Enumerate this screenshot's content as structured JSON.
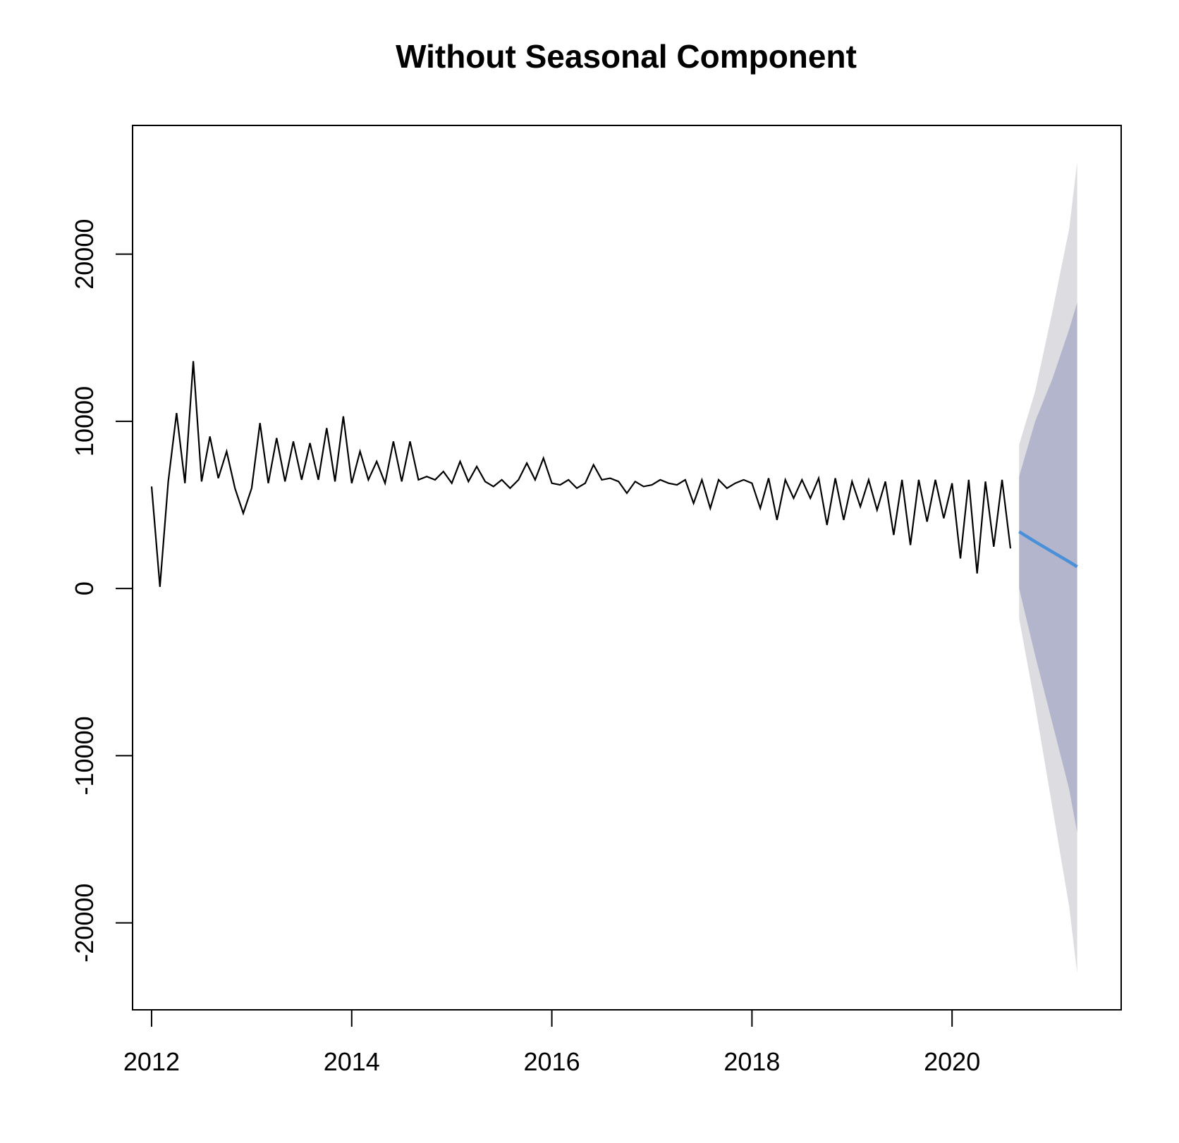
{
  "chart_data": {
    "type": "line",
    "title": "Without Seasonal Component",
    "xlabel": "",
    "ylabel": "",
    "xlim": [
      2011.81,
      2021.69
    ],
    "ylim": [
      -25200,
      27700
    ],
    "x_ticks": [
      2012,
      2014,
      2016,
      2018,
      2020
    ],
    "x_tick_labels": [
      "2012",
      "2014",
      "2016",
      "2018",
      "2020"
    ],
    "y_ticks": [
      -20000,
      -10000,
      0,
      10000,
      20000
    ],
    "y_tick_labels": [
      "-20000",
      "-10000",
      "0",
      "10000",
      "20000"
    ],
    "grid": false,
    "legend": "none",
    "series": [
      {
        "start": 2012.0,
        "frequency": 12,
        "color": "#000000",
        "values": [
          6100,
          100,
          6400,
          10500,
          6300,
          13600,
          6400,
          9100,
          6600,
          8200,
          6000,
          4500,
          6000,
          9900,
          6300,
          9000,
          6400,
          8800,
          6500,
          8700,
          6500,
          9600,
          6400,
          10300,
          6300,
          8200,
          6500,
          7600,
          6300,
          8800,
          6400,
          8800,
          6500,
          6700,
          6500,
          7000,
          6300,
          7600,
          6400,
          7300,
          6400,
          6100,
          6500,
          6000,
          6500,
          7500,
          6500,
          7800,
          6300,
          6200,
          6500,
          6000,
          6300,
          7400,
          6500,
          6600,
          6400,
          5700,
          6400,
          6100,
          6200,
          6500,
          6300,
          6200,
          6500,
          5100,
          6500,
          4800,
          6500,
          6000,
          6300,
          6500,
          6300,
          4800,
          6600,
          4100,
          6500,
          5400,
          6500,
          5400,
          6600,
          3800,
          6600,
          4100,
          6400,
          4900,
          6500,
          4700,
          6400,
          3200,
          6500,
          2600,
          6500,
          4000,
          6500,
          4200,
          6300,
          1800,
          6500,
          900,
          6400,
          2500,
          6500,
          2400
        ]
      }
    ],
    "forecast": {
      "color": "#4a90d9",
      "inner_band_color": "#b2b5cc",
      "outer_band_color": "#dcdce1",
      "x": [
        2020.67,
        2020.83,
        2021.0,
        2021.17,
        2021.25
      ],
      "mean": [
        3400,
        2800,
        2200,
        1600,
        1300
      ],
      "lower_80": [
        0,
        -4000,
        -8000,
        -12000,
        -14600
      ],
      "upper_80": [
        6700,
        10000,
        12500,
        15500,
        17100
      ],
      "lower_95": [
        -1800,
        -7000,
        -13000,
        -19000,
        -23000
      ],
      "upper_95": [
        8600,
        11800,
        16500,
        21500,
        25500
      ]
    }
  }
}
